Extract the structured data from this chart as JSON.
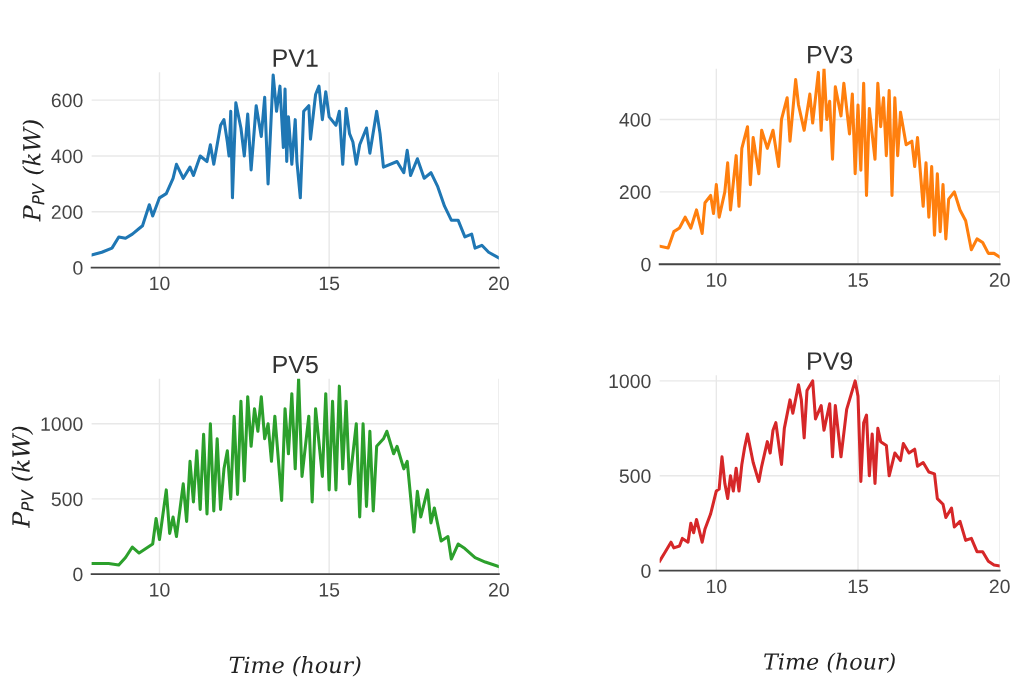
{
  "chart_data": [
    {
      "type": "line",
      "title": "PV1",
      "ylabel": "P$_{PV}$ (kW)",
      "xlim": [
        8,
        20
      ],
      "xticks": [
        10,
        15,
        20
      ],
      "ylim": [
        0,
        700
      ],
      "yticks": [
        0,
        200,
        400,
        600
      ],
      "grid": true,
      "series": [
        {
          "color": "#1f77b4",
          "x": [
            8.0,
            8.3,
            8.6,
            8.8,
            9.0,
            9.2,
            9.4,
            9.5,
            9.7,
            9.8,
            10.0,
            10.2,
            10.4,
            10.5,
            10.7,
            10.9,
            11.0,
            11.2,
            11.4,
            11.5,
            11.6,
            11.8,
            11.9,
            12.0,
            12.05,
            12.1,
            12.15,
            12.25,
            12.4,
            12.5,
            12.6,
            12.7,
            12.85,
            13.0,
            13.1,
            13.2,
            13.35,
            13.45,
            13.55,
            13.65,
            13.7,
            13.75,
            13.8,
            13.9,
            14.0,
            14.05,
            14.15,
            14.25,
            14.4,
            14.45,
            14.6,
            14.7,
            14.8,
            14.9,
            15.0,
            15.2,
            15.3,
            15.4,
            15.5,
            15.6,
            15.7,
            15.8,
            15.9,
            16.1,
            16.2,
            16.4,
            16.5,
            16.6,
            17.0,
            17.2,
            17.3,
            17.4,
            17.6,
            17.8,
            18.0,
            18.2,
            18.4,
            18.6,
            18.8,
            19.0,
            19.2,
            19.3,
            19.5,
            19.7,
            20.0
          ],
          "values": [
            45,
            55,
            70,
            110,
            105,
            120,
            140,
            150,
            225,
            185,
            250,
            265,
            320,
            370,
            320,
            360,
            330,
            400,
            380,
            440,
            370,
            510,
            530,
            450,
            400,
            560,
            250,
            590,
            500,
            400,
            550,
            350,
            580,
            470,
            610,
            300,
            690,
            560,
            650,
            430,
            640,
            380,
            540,
            370,
            530,
            380,
            250,
            560,
            580,
            460,
            620,
            650,
            530,
            630,
            540,
            510,
            560,
            370,
            570,
            480,
            450,
            370,
            440,
            500,
            410,
            560,
            480,
            360,
            380,
            340,
            420,
            330,
            390,
            320,
            340,
            290,
            220,
            170,
            170,
            110,
            120,
            70,
            80,
            55,
            35
          ]
        }
      ]
    },
    {
      "type": "line",
      "title": "PV3",
      "xlim": [
        8,
        20
      ],
      "xticks": [
        10,
        15,
        20
      ],
      "ylim": [
        0,
        540
      ],
      "yticks": [
        0,
        200,
        400
      ],
      "grid": true,
      "series": [
        {
          "color": "#ff7f0e",
          "x": [
            8.0,
            8.3,
            8.5,
            8.7,
            8.9,
            9.1,
            9.3,
            9.5,
            9.6,
            9.8,
            9.9,
            10.0,
            10.1,
            10.3,
            10.4,
            10.5,
            10.7,
            10.8,
            10.9,
            11.1,
            11.2,
            11.3,
            11.5,
            11.6,
            11.8,
            12.0,
            12.2,
            12.3,
            12.5,
            12.6,
            12.8,
            12.9,
            13.1,
            13.3,
            13.4,
            13.6,
            13.7,
            13.8,
            13.9,
            14.0,
            14.1,
            14.2,
            14.4,
            14.5,
            14.7,
            14.8,
            14.9,
            15.0,
            15.1,
            15.2,
            15.3,
            15.4,
            15.6,
            15.7,
            15.8,
            15.9,
            16.0,
            16.1,
            16.2,
            16.3,
            16.4,
            16.5,
            16.7,
            16.9,
            17.0,
            17.1,
            17.3,
            17.4,
            17.5,
            17.6,
            17.7,
            17.8,
            17.9,
            18.0,
            18.1,
            18.2,
            18.4,
            18.6,
            18.8,
            19.0,
            19.2,
            19.4,
            19.6,
            19.8,
            20.0
          ],
          "values": [
            50,
            45,
            90,
            100,
            130,
            100,
            150,
            85,
            170,
            190,
            140,
            220,
            130,
            200,
            280,
            150,
            300,
            160,
            320,
            380,
            220,
            350,
            250,
            370,
            320,
            370,
            270,
            400,
            460,
            340,
            510,
            440,
            370,
            470,
            390,
            530,
            370,
            540,
            400,
            450,
            290,
            490,
            410,
            500,
            360,
            470,
            250,
            440,
            260,
            500,
            190,
            430,
            290,
            500,
            380,
            460,
            300,
            480,
            190,
            460,
            300,
            420,
            330,
            340,
            270,
            350,
            160,
            280,
            130,
            270,
            80,
            250,
            90,
            220,
            70,
            180,
            200,
            150,
            120,
            40,
            70,
            60,
            30,
            30,
            20
          ]
        }
      ]
    },
    {
      "type": "line",
      "title": "PV5",
      "ylabel": "P$_{PV}$ (kW)",
      "xlabel": "Time (hour)",
      "xlim": [
        8,
        20
      ],
      "xticks": [
        10,
        15,
        20
      ],
      "ylim": [
        0,
        1300
      ],
      "yticks": [
        0,
        500,
        1000
      ],
      "grid": true,
      "series": [
        {
          "color": "#2ca02c",
          "x": [
            8.0,
            8.5,
            8.8,
            9.0,
            9.2,
            9.4,
            9.6,
            9.8,
            9.9,
            10.0,
            10.2,
            10.3,
            10.4,
            10.5,
            10.7,
            10.8,
            10.9,
            11.0,
            11.1,
            11.2,
            11.3,
            11.4,
            11.5,
            11.6,
            11.7,
            11.8,
            11.9,
            12.0,
            12.1,
            12.2,
            12.3,
            12.4,
            12.5,
            12.6,
            12.7,
            12.8,
            12.9,
            13.0,
            13.1,
            13.2,
            13.3,
            13.4,
            13.6,
            13.7,
            13.8,
            13.9,
            14.0,
            14.1,
            14.2,
            14.4,
            14.5,
            14.6,
            14.8,
            14.9,
            15.0,
            15.1,
            15.2,
            15.3,
            15.4,
            15.5,
            15.6,
            15.8,
            15.9,
            16.0,
            16.1,
            16.2,
            16.3,
            16.4,
            16.6,
            16.7,
            16.9,
            17.0,
            17.2,
            17.3,
            17.5,
            17.6,
            17.7,
            17.9,
            18.0,
            18.1,
            18.3,
            18.5,
            18.6,
            18.8,
            19.0,
            19.3,
            19.6,
            20.0
          ],
          "values": [
            70,
            70,
            60,
            110,
            180,
            140,
            170,
            200,
            370,
            230,
            560,
            270,
            380,
            250,
            600,
            350,
            750,
            480,
            820,
            430,
            930,
            400,
            1000,
            420,
            900,
            430,
            700,
            820,
            500,
            1050,
            530,
            1150,
            620,
            1180,
            850,
            1100,
            950,
            1180,
            900,
            1000,
            750,
            1050,
            490,
            1100,
            800,
            1200,
            700,
            1300,
            650,
            1050,
            480,
            1100,
            650,
            1200,
            560,
            1150,
            560,
            1250,
            700,
            1150,
            600,
            1000,
            380,
            1000,
            450,
            950,
            420,
            850,
            900,
            950,
            800,
            850,
            700,
            750,
            280,
            550,
            380,
            560,
            340,
            440,
            220,
            250,
            100,
            200,
            170,
            110,
            80,
            50
          ]
        }
      ]
    },
    {
      "type": "line",
      "title": "PV9",
      "xlabel": "Time (hour)",
      "xlim": [
        8,
        20
      ],
      "xticks": [
        10,
        15,
        20
      ],
      "ylim": [
        0,
        1030
      ],
      "yticks": [
        0,
        500,
        1000
      ],
      "grid": true,
      "series": [
        {
          "color": "#d62728",
          "x": [
            8.0,
            8.2,
            8.4,
            8.5,
            8.7,
            8.8,
            9.0,
            9.1,
            9.2,
            9.3,
            9.5,
            9.6,
            9.8,
            10.0,
            10.1,
            10.2,
            10.3,
            10.4,
            10.5,
            10.6,
            10.7,
            10.8,
            10.9,
            11.0,
            11.1,
            11.3,
            11.5,
            11.6,
            11.8,
            11.9,
            12.0,
            12.1,
            12.3,
            12.4,
            12.6,
            12.7,
            12.9,
            13.0,
            13.1,
            13.2,
            13.4,
            13.5,
            13.7,
            13.8,
            14.0,
            14.1,
            14.2,
            14.4,
            14.6,
            14.8,
            14.9,
            15.0,
            15.1,
            15.2,
            15.3,
            15.4,
            15.5,
            15.6,
            15.7,
            15.8,
            16.0,
            16.1,
            16.3,
            16.5,
            16.6,
            16.8,
            17.0,
            17.1,
            17.3,
            17.5,
            17.7,
            17.8,
            18.0,
            18.1,
            18.3,
            18.4,
            18.6,
            18.8,
            19.0,
            19.2,
            19.4,
            19.6,
            19.8,
            20.0
          ],
          "values": [
            50,
            100,
            150,
            120,
            130,
            170,
            150,
            250,
            200,
            270,
            150,
            220,
            300,
            420,
            430,
            600,
            460,
            380,
            500,
            420,
            540,
            420,
            560,
            650,
            720,
            570,
            470,
            550,
            680,
            620,
            740,
            780,
            560,
            750,
            900,
            830,
            980,
            900,
            700,
            950,
            1000,
            800,
            870,
            740,
            880,
            600,
            870,
            600,
            850,
            950,
            1000,
            920,
            470,
            780,
            820,
            500,
            720,
            460,
            750,
            680,
            660,
            500,
            620,
            580,
            670,
            620,
            640,
            550,
            570,
            520,
            510,
            380,
            350,
            280,
            330,
            230,
            260,
            160,
            170,
            100,
            100,
            50,
            30,
            25
          ]
        }
      ]
    }
  ]
}
